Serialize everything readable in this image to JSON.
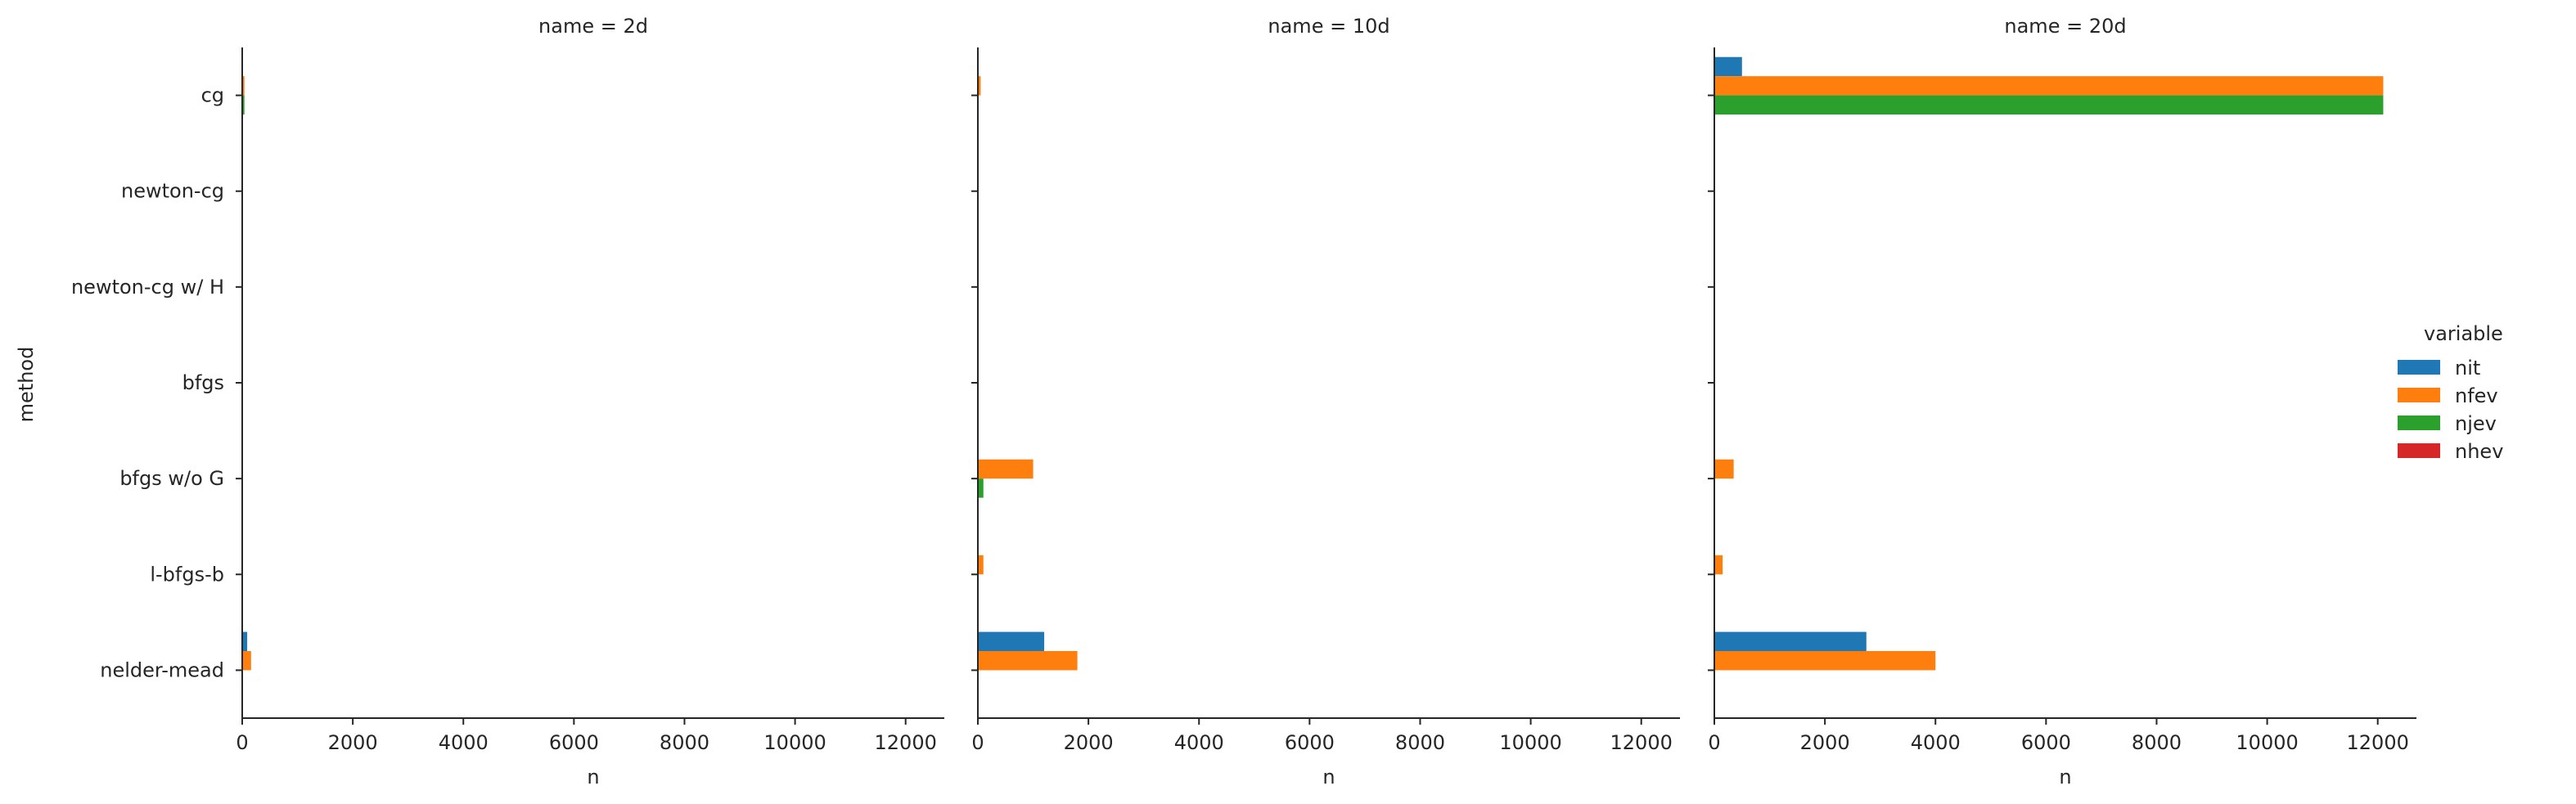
{
  "chart_data": {
    "type": "bar",
    "orientation": "horizontal",
    "ylabel": "method",
    "xlabel": "n",
    "xlim": [
      0,
      12700
    ],
    "x_ticks": [
      "0",
      "2000",
      "4000",
      "6000",
      "8000",
      "10000",
      "12000"
    ],
    "categories": [
      "cg",
      "newton-cg",
      "newton-cg w/ H",
      "bfgs",
      "bfgs w/o G",
      "l-bfgs-b",
      "nelder-mead"
    ],
    "legend": {
      "title": "variable",
      "placement": "right",
      "entries": [
        {
          "name": "nit",
          "color": "#1f77b4"
        },
        {
          "name": "nfev",
          "color": "#ff7f0e"
        },
        {
          "name": "njev",
          "color": "#2ca02c"
        },
        {
          "name": "nhev",
          "color": "#d62728"
        }
      ]
    },
    "panels": [
      {
        "title": "name = 2d",
        "series": [
          {
            "name": "nit",
            "values": [
              5,
              0,
              0,
              0,
              0,
              0,
              90
            ]
          },
          {
            "name": "nfev",
            "values": [
              40,
              0,
              0,
              0,
              0,
              0,
              160
            ]
          },
          {
            "name": "njev",
            "values": [
              40,
              0,
              0,
              0,
              0,
              0,
              0
            ]
          },
          {
            "name": "nhev",
            "values": [
              0,
              0,
              0,
              0,
              0,
              0,
              0
            ]
          }
        ]
      },
      {
        "title": "name = 10d",
        "series": [
          {
            "name": "nit",
            "values": [
              10,
              0,
              0,
              0,
              0,
              0,
              1200
            ]
          },
          {
            "name": "nfev",
            "values": [
              50,
              0,
              0,
              0,
              1000,
              100,
              1800
            ]
          },
          {
            "name": "njev",
            "values": [
              0,
              0,
              0,
              0,
              100,
              0,
              0
            ]
          },
          {
            "name": "nhev",
            "values": [
              0,
              0,
              0,
              0,
              0,
              0,
              0
            ]
          }
        ]
      },
      {
        "title": "name = 20d",
        "series": [
          {
            "name": "nit",
            "values": [
              500,
              0,
              0,
              0,
              0,
              0,
              2750
            ]
          },
          {
            "name": "nfev",
            "values": [
              12100,
              0,
              0,
              0,
              350,
              150,
              4000
            ]
          },
          {
            "name": "njev",
            "values": [
              12100,
              0,
              0,
              0,
              0,
              0,
              0
            ]
          },
          {
            "name": "nhev",
            "values": [
              0,
              0,
              0,
              0,
              0,
              0,
              0
            ]
          }
        ]
      }
    ]
  }
}
